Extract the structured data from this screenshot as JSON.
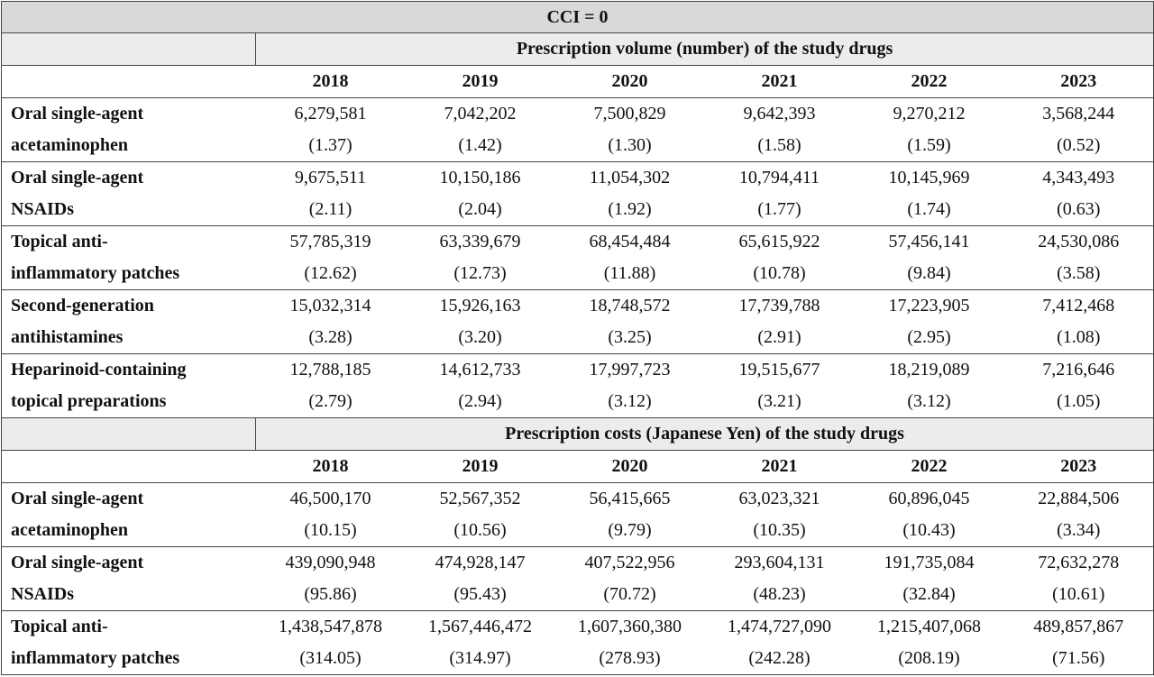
{
  "title": "CCI = 0",
  "years": [
    "2018",
    "2019",
    "2020",
    "2021",
    "2022",
    "2023"
  ],
  "sections": [
    {
      "heading": "Prescription volume (number) of the study drugs",
      "rows": [
        {
          "name_line1": "Oral single-agent",
          "name_line2": "acetaminophen",
          "values": [
            "6,279,581",
            "7,042,202",
            "7,500,829",
            "9,642,393",
            "9,270,212",
            "3,568,244"
          ],
          "sub": [
            "(1.37)",
            "(1.42)",
            "(1.30)",
            "(1.58)",
            "(1.59)",
            "(0.52)"
          ]
        },
        {
          "name_line1": "Oral single-agent",
          "name_line2": "NSAIDs",
          "values": [
            "9,675,511",
            "10,150,186",
            "11,054,302",
            "10,794,411",
            "10,145,969",
            "4,343,493"
          ],
          "sub": [
            "(2.11)",
            "(2.04)",
            "(1.92)",
            "(1.77)",
            "(1.74)",
            "(0.63)"
          ]
        },
        {
          "name_line1": "Topical anti-",
          "name_line2": "inflammatory patches",
          "values": [
            "57,785,319",
            "63,339,679",
            "68,454,484",
            "65,615,922",
            "57,456,141",
            "24,530,086"
          ],
          "sub": [
            "(12.62)",
            "(12.73)",
            "(11.88)",
            "(10.78)",
            "(9.84)",
            "(3.58)"
          ]
        },
        {
          "name_line1": "Second-generation",
          "name_line2": "antihistamines",
          "values": [
            "15,032,314",
            "15,926,163",
            "18,748,572",
            "17,739,788",
            "17,223,905",
            "7,412,468"
          ],
          "sub": [
            "(3.28)",
            "(3.20)",
            "(3.25)",
            "(2.91)",
            "(2.95)",
            "(1.08)"
          ]
        },
        {
          "name_line1": "Heparinoid-containing",
          "name_line2": "topical preparations",
          "values": [
            "12,788,185",
            "14,612,733",
            "17,997,723",
            "19,515,677",
            "18,219,089",
            "7,216,646"
          ],
          "sub": [
            "(2.79)",
            "(2.94)",
            "(3.12)",
            "(3.21)",
            "(3.12)",
            "(1.05)"
          ]
        }
      ]
    },
    {
      "heading": "Prescription costs (Japanese Yen) of the study drugs",
      "rows": [
        {
          "name_line1": "Oral single-agent",
          "name_line2": "acetaminophen",
          "values": [
            "46,500,170",
            "52,567,352",
            "56,415,665",
            "63,023,321",
            "60,896,045",
            "22,884,506"
          ],
          "sub": [
            "(10.15)",
            "(10.56)",
            "(9.79)",
            "(10.35)",
            "(10.43)",
            "(3.34)"
          ]
        },
        {
          "name_line1": "Oral single-agent",
          "name_line2": "NSAIDs",
          "values": [
            "439,090,948",
            "474,928,147",
            "407,522,956",
            "293,604,131",
            "191,735,084",
            "72,632,278"
          ],
          "sub": [
            "(95.86)",
            "(95.43)",
            "(70.72)",
            "(48.23)",
            "(32.84)",
            "(10.61)"
          ]
        },
        {
          "name_line1": "Topical anti-",
          "name_line2": "inflammatory patches",
          "values": [
            "1,438,547,878",
            "1,567,446,472",
            "1,607,360,380",
            "1,474,727,090",
            "1,215,407,068",
            "489,857,867"
          ],
          "sub": [
            "(314.05)",
            "(314.97)",
            "(278.93)",
            "(242.28)",
            "(208.19)",
            "(71.56)"
          ]
        }
      ]
    }
  ]
}
